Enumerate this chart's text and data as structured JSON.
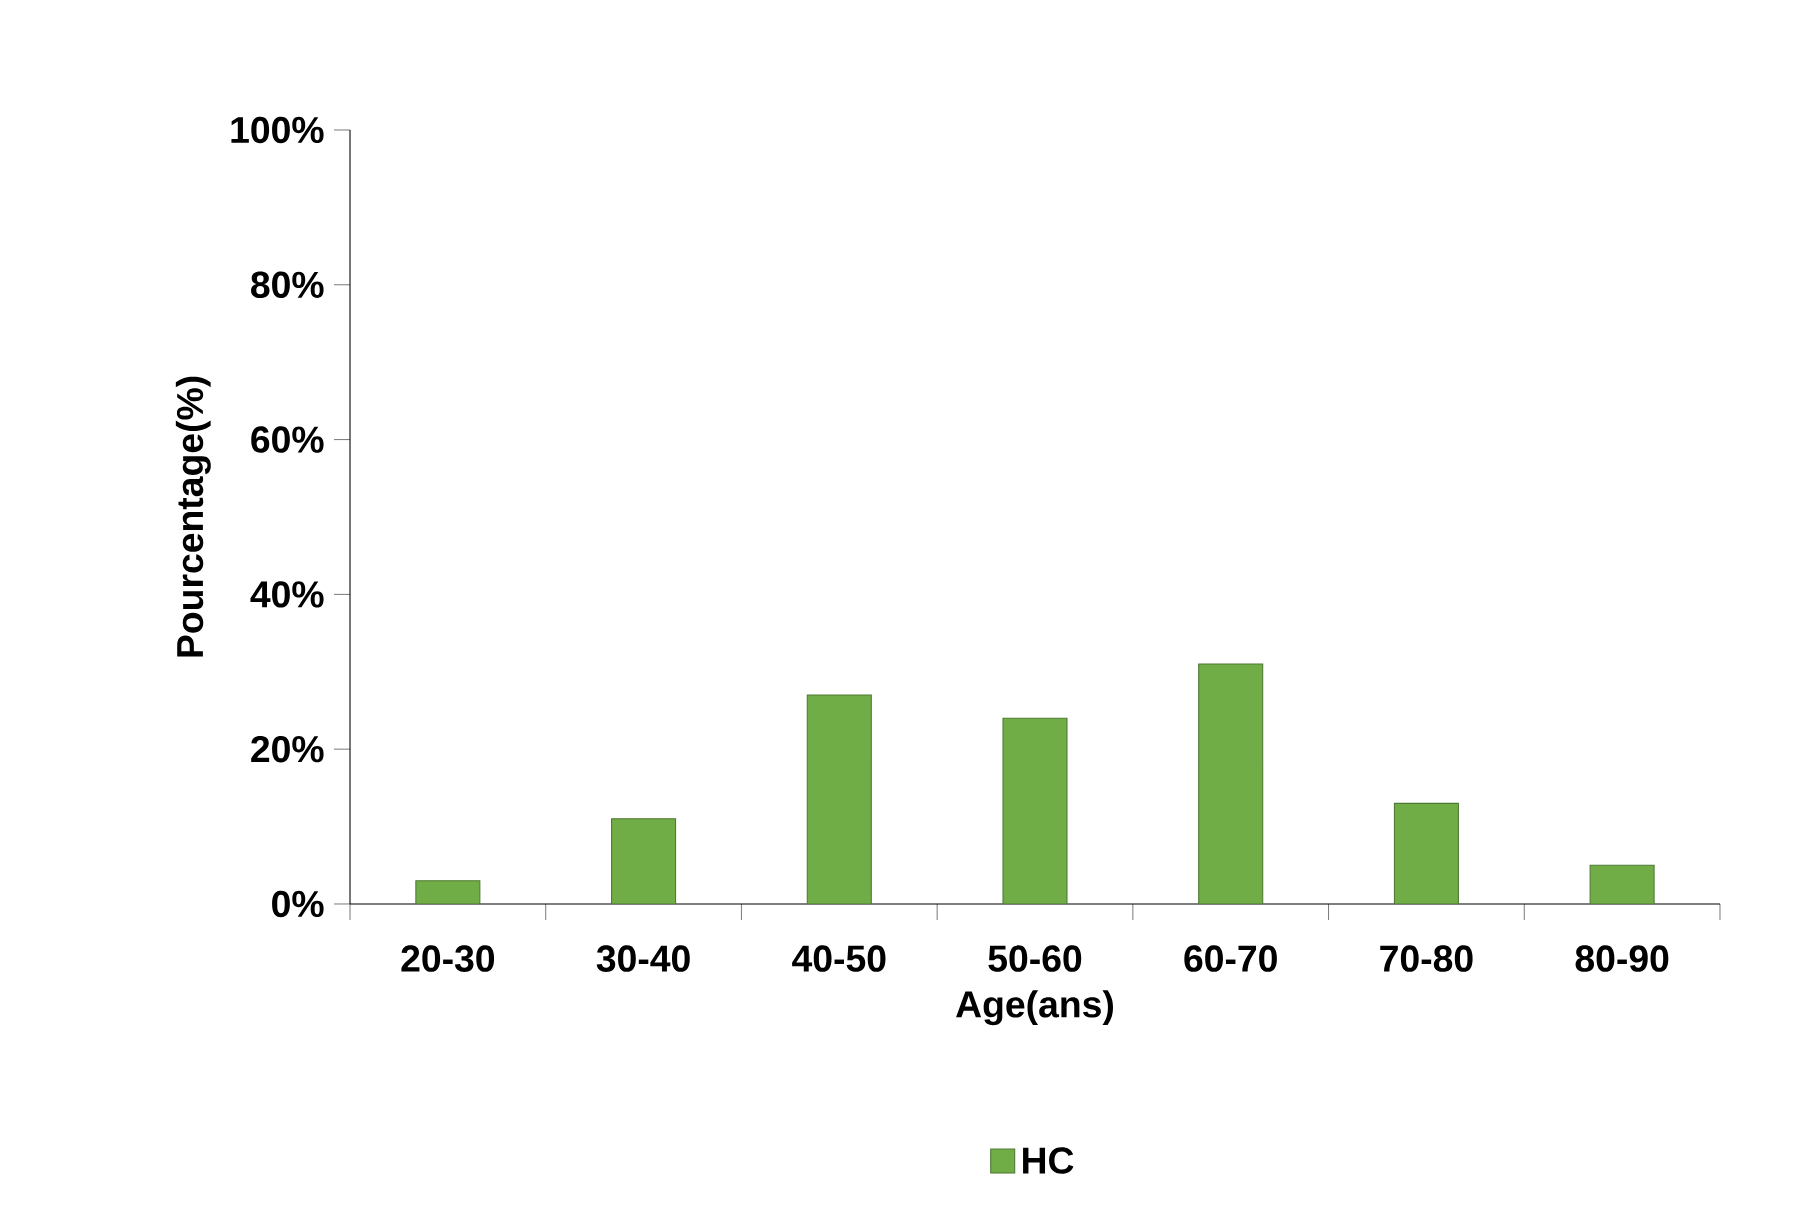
{
  "chart_data": {
    "type": "bar",
    "xlabel": "Age(ans)",
    "ylabel": "Pourcentage(%)",
    "categories": [
      "20-30",
      "30-40",
      "40-50",
      "50-60",
      "60-70",
      "70-80",
      "80-90"
    ],
    "series": [
      {
        "name": "HC",
        "color": "#70ad47",
        "values": [
          3,
          11,
          27,
          24,
          31,
          13,
          5
        ]
      }
    ],
    "ylim": [
      0,
      100
    ],
    "yticks": [
      {
        "value": 0,
        "label": "0%"
      },
      {
        "value": 20,
        "label": "20%"
      },
      {
        "value": 40,
        "label": "40%"
      },
      {
        "value": 60,
        "label": "60%"
      },
      {
        "value": 80,
        "label": "80%"
      },
      {
        "value": 100,
        "label": "100%"
      }
    ],
    "grid": false,
    "legend": "bottom"
  }
}
